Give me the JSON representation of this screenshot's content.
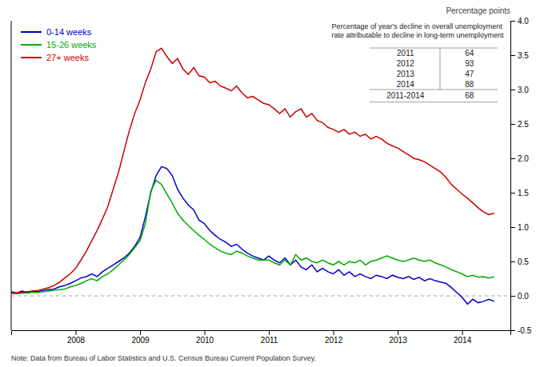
{
  "chart_data": {
    "type": "line",
    "y_label": "Percentage points",
    "note": "Note: Data from Bureau of Labor Statistics and U.S. Census Bureau Current Population Survey.",
    "xlim": [
      2007.0,
      2014.75
    ],
    "xticks": [
      2008,
      2009,
      2010,
      2011,
      2012,
      2013,
      2014
    ],
    "ylim": [
      -0.5,
      4.0
    ],
    "yticks": [
      -0.5,
      {
        "value": 0.0,
        "label": "0.0"
      },
      0.5,
      {
        "value": 1.0,
        "label": "1.0"
      },
      1.5,
      {
        "value": 2.0,
        "label": "2.0"
      },
      2.5,
      {
        "value": 3.0,
        "label": "3.0"
      },
      3.5,
      {
        "value": 4.0,
        "label": "4.0"
      }
    ],
    "grid": false,
    "legend": "top-left",
    "x": [
      2007.0,
      2007.083,
      2007.167,
      2007.25,
      2007.333,
      2007.417,
      2007.5,
      2007.583,
      2007.667,
      2007.75,
      2007.833,
      2007.917,
      2008.0,
      2008.083,
      2008.167,
      2008.25,
      2008.333,
      2008.417,
      2008.5,
      2008.583,
      2008.667,
      2008.75,
      2008.833,
      2008.917,
      2009.0,
      2009.083,
      2009.167,
      2009.25,
      2009.333,
      2009.417,
      2009.5,
      2009.583,
      2009.667,
      2009.75,
      2009.833,
      2009.917,
      2010.0,
      2010.083,
      2010.167,
      2010.25,
      2010.333,
      2010.417,
      2010.5,
      2010.583,
      2010.667,
      2010.75,
      2010.833,
      2010.917,
      2011.0,
      2011.083,
      2011.167,
      2011.25,
      2011.333,
      2011.417,
      2011.5,
      2011.583,
      2011.667,
      2011.75,
      2011.833,
      2011.917,
      2012.0,
      2012.083,
      2012.167,
      2012.25,
      2012.333,
      2012.417,
      2012.5,
      2012.583,
      2012.667,
      2012.75,
      2012.833,
      2012.917,
      2013.0,
      2013.083,
      2013.167,
      2013.25,
      2013.333,
      2013.417,
      2013.5,
      2013.583,
      2013.667,
      2013.75,
      2013.833,
      2013.917,
      2014.0,
      2014.083,
      2014.167,
      2014.25,
      2014.333,
      2014.417,
      2014.5
    ],
    "series": [
      {
        "name": "0-14 weeks",
        "color": "#0000cc",
        "values": [
          0.06,
          0.04,
          0.07,
          0.05,
          0.07,
          0.06,
          0.08,
          0.09,
          0.1,
          0.13,
          0.15,
          0.18,
          0.22,
          0.26,
          0.28,
          0.32,
          0.28,
          0.35,
          0.4,
          0.45,
          0.5,
          0.55,
          0.62,
          0.72,
          0.85,
          1.15,
          1.5,
          1.75,
          1.88,
          1.85,
          1.75,
          1.55,
          1.42,
          1.32,
          1.25,
          1.1,
          1.05,
          0.95,
          0.88,
          0.82,
          0.78,
          0.72,
          0.75,
          0.68,
          0.62,
          0.58,
          0.55,
          0.52,
          0.58,
          0.52,
          0.48,
          0.55,
          0.45,
          0.52,
          0.42,
          0.38,
          0.45,
          0.35,
          0.4,
          0.35,
          0.32,
          0.38,
          0.3,
          0.35,
          0.28,
          0.32,
          0.28,
          0.25,
          0.3,
          0.28,
          0.25,
          0.3,
          0.27,
          0.25,
          0.28,
          0.24,
          0.27,
          0.22,
          0.25,
          0.22,
          0.2,
          0.18,
          0.12,
          0.05,
          -0.02,
          -0.12,
          -0.05,
          -0.1,
          -0.08,
          -0.05,
          -0.08
        ]
      },
      {
        "name": "15-26 weeks",
        "color": "#00aa00",
        "values": [
          0.04,
          0.03,
          0.04,
          0.04,
          0.05,
          0.05,
          0.06,
          0.07,
          0.08,
          0.09,
          0.1,
          0.13,
          0.15,
          0.18,
          0.22,
          0.25,
          0.22,
          0.28,
          0.32,
          0.38,
          0.45,
          0.52,
          0.6,
          0.7,
          0.8,
          1.05,
          1.52,
          1.68,
          1.62,
          1.48,
          1.35,
          1.2,
          1.1,
          1.02,
          0.95,
          0.88,
          0.82,
          0.75,
          0.7,
          0.65,
          0.62,
          0.6,
          0.65,
          0.62,
          0.58,
          0.55,
          0.52,
          0.52,
          0.52,
          0.48,
          0.45,
          0.52,
          0.45,
          0.6,
          0.52,
          0.55,
          0.5,
          0.48,
          0.52,
          0.48,
          0.45,
          0.5,
          0.45,
          0.5,
          0.48,
          0.52,
          0.45,
          0.5,
          0.52,
          0.55,
          0.58,
          0.55,
          0.52,
          0.5,
          0.52,
          0.55,
          0.52,
          0.5,
          0.52,
          0.48,
          0.45,
          0.42,
          0.38,
          0.35,
          0.32,
          0.28,
          0.3,
          0.27,
          0.28,
          0.26,
          0.28
        ]
      },
      {
        "name": "27+ weeks",
        "color": "#cc0000",
        "values": [
          0.04,
          0.04,
          0.05,
          0.06,
          0.07,
          0.08,
          0.1,
          0.12,
          0.15,
          0.2,
          0.26,
          0.32,
          0.4,
          0.52,
          0.65,
          0.8,
          0.95,
          1.12,
          1.3,
          1.55,
          1.8,
          2.1,
          2.4,
          2.65,
          2.85,
          3.1,
          3.3,
          3.55,
          3.6,
          3.48,
          3.38,
          3.45,
          3.3,
          3.22,
          3.32,
          3.2,
          3.18,
          3.1,
          3.12,
          3.05,
          3.02,
          2.98,
          3.05,
          2.95,
          2.88,
          2.9,
          2.85,
          2.8,
          2.78,
          2.72,
          2.65,
          2.72,
          2.6,
          2.68,
          2.72,
          2.6,
          2.65,
          2.55,
          2.52,
          2.45,
          2.42,
          2.38,
          2.42,
          2.35,
          2.38,
          2.32,
          2.35,
          2.28,
          2.32,
          2.28,
          2.22,
          2.18,
          2.15,
          2.1,
          2.05,
          2.0,
          1.98,
          1.95,
          1.9,
          1.85,
          1.8,
          1.72,
          1.62,
          1.55,
          1.48,
          1.42,
          1.35,
          1.28,
          1.22,
          1.18,
          1.2
        ]
      }
    ],
    "table": {
      "title": "Percentage of year's decline in overall unemployment\nrate attributable to decline in long-term unemployment",
      "rows": [
        {
          "label": "2011",
          "value": 64
        },
        {
          "label": "2012",
          "value": 93
        },
        {
          "label": "2013",
          "value": 47
        },
        {
          "label": "2014",
          "value": 88
        }
      ],
      "total": {
        "label": "2011-2014",
        "value": 68
      }
    }
  }
}
